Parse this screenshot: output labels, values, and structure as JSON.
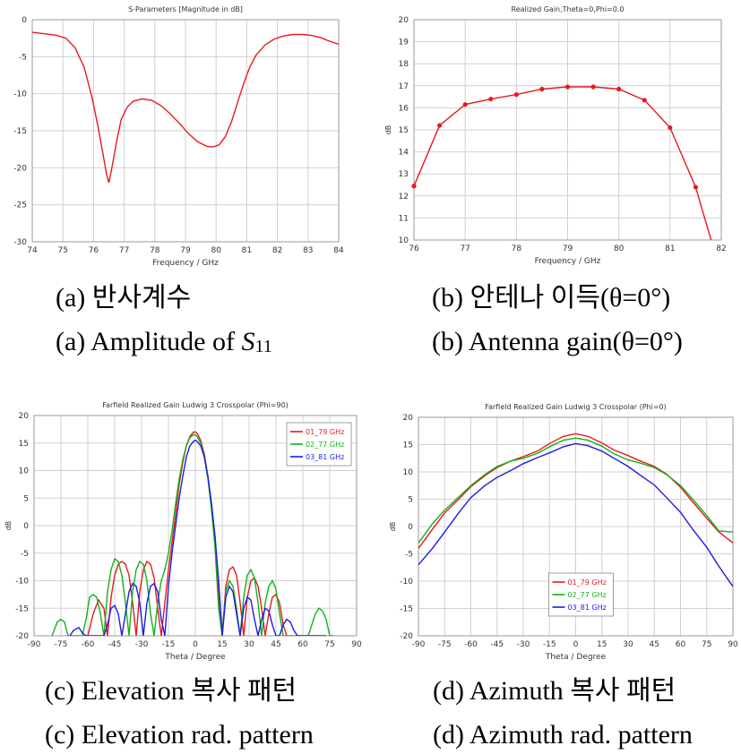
{
  "chart_data": [
    {
      "id": "a",
      "type": "line",
      "title": "S-Parameters [Magnitude in dB]",
      "xlabel": "Frequency / GHz",
      "ylabel": "",
      "xlim": [
        74,
        84
      ],
      "ylim": [
        -30,
        0
      ],
      "xticks": [
        74,
        75,
        76,
        77,
        78,
        79,
        80,
        81,
        82,
        83,
        84
      ],
      "yticks": [
        -30,
        -25,
        -20,
        -15,
        -10,
        -5,
        0
      ],
      "grid": true,
      "markers": false,
      "series": [
        {
          "name": "",
          "color": "#e8191f",
          "x": [
            74.0,
            74.4,
            74.8,
            75.1,
            75.4,
            75.7,
            75.95,
            76.15,
            76.3,
            76.42,
            76.5,
            76.6,
            76.75,
            76.9,
            77.1,
            77.3,
            77.6,
            77.9,
            78.2,
            78.5,
            78.8,
            79.1,
            79.4,
            79.7,
            79.9,
            80.1,
            80.3,
            80.5,
            80.7,
            80.9,
            81.1,
            81.3,
            81.6,
            81.9,
            82.2,
            82.5,
            82.8,
            83.1,
            83.4,
            83.7,
            84.0
          ],
          "y": [
            -1.7,
            -1.9,
            -2.1,
            -2.5,
            -3.8,
            -6.5,
            -10.5,
            -14.5,
            -18.0,
            -20.8,
            -22.0,
            -20.0,
            -16.5,
            -13.5,
            -11.8,
            -11.0,
            -10.7,
            -10.9,
            -11.6,
            -12.7,
            -14.0,
            -15.4,
            -16.5,
            -17.1,
            -17.2,
            -16.9,
            -15.8,
            -13.8,
            -11.2,
            -8.6,
            -6.4,
            -4.8,
            -3.4,
            -2.6,
            -2.2,
            -2.0,
            -2.0,
            -2.1,
            -2.4,
            -2.9,
            -3.3
          ]
        }
      ]
    },
    {
      "id": "b",
      "type": "line",
      "title": "Realized Gain,Theta=0,Phi=0.0",
      "xlabel": "Frequency / GHz",
      "ylabel": "dB",
      "xlim": [
        76,
        82
      ],
      "ylim": [
        10,
        20
      ],
      "xticks": [
        76,
        77,
        78,
        79,
        80,
        81,
        82
      ],
      "yticks": [
        10,
        11,
        12,
        13,
        14,
        15,
        16,
        17,
        18,
        19,
        20
      ],
      "grid": true,
      "markers": true,
      "series": [
        {
          "name": "",
          "color": "#e8191f",
          "x": [
            76.0,
            76.5,
            77.0,
            77.5,
            78.0,
            78.5,
            79.0,
            79.5,
            80.0,
            80.5,
            81.0,
            81.5,
            81.8
          ],
          "y": [
            12.45,
            15.2,
            16.15,
            16.4,
            16.6,
            16.85,
            16.95,
            16.95,
            16.85,
            16.35,
            15.1,
            12.4,
            10.0
          ],
          "marker_flags": [
            1,
            1,
            1,
            1,
            1,
            1,
            1,
            1,
            1,
            1,
            1,
            1,
            0
          ]
        }
      ]
    },
    {
      "id": "c",
      "type": "line",
      "title": "Farfield Realized Gain Ludwig 3 Crosspolar (Phi=90)",
      "xlabel": "Theta / Degree",
      "ylabel": "dB",
      "xlim": [
        -90,
        90
      ],
      "ylim": [
        -20,
        20
      ],
      "xticks": [
        -90,
        -75,
        -60,
        -45,
        -30,
        -15,
        0,
        15,
        30,
        45,
        60,
        75,
        90
      ],
      "yticks": [
        -20,
        -15,
        -10,
        -5,
        0,
        5,
        10,
        15,
        20
      ],
      "grid": true,
      "legend": "top-right",
      "series": [
        {
          "name": "01_79 GHz",
          "color": "#e8191f",
          "x": [
            -60,
            -57,
            -54,
            -51,
            -49,
            -47,
            -45,
            -43,
            -41,
            -39,
            -37,
            -35,
            -33,
            -31,
            -29,
            -27,
            -25,
            -23,
            -21,
            -19,
            -17,
            -15,
            -13,
            -11,
            -9,
            -7,
            -5,
            -3,
            -1,
            0,
            1,
            3,
            5,
            7,
            9,
            11,
            13,
            15,
            17,
            19,
            21,
            23,
            25,
            27,
            29,
            31,
            33,
            35,
            37,
            39,
            41,
            43,
            45,
            47,
            49,
            51
          ],
          "y": [
            -20,
            -16,
            -13.5,
            -15,
            -20,
            -13,
            -9,
            -7,
            -6.5,
            -7,
            -9,
            -14,
            -20,
            -12,
            -8,
            -6.5,
            -7,
            -9.5,
            -15,
            -20,
            -14,
            -8,
            -3,
            2,
            7.5,
            11.5,
            14.5,
            16.2,
            17,
            17,
            16.8,
            15.5,
            13,
            9,
            4,
            -2,
            -12,
            -20,
            -11,
            -8,
            -7.5,
            -9,
            -14,
            -20,
            -13,
            -10,
            -9.5,
            -11,
            -15,
            -20,
            -16,
            -13,
            -12.5,
            -14,
            -18,
            -20
          ]
        },
        {
          "name": "02_77 GHz",
          "color": "#12b217",
          "x": [
            -80,
            -77,
            -75,
            -73,
            -71,
            -69,
            -67,
            -65,
            -63,
            -61,
            -59,
            -57,
            -55,
            -53,
            -51,
            -49,
            -47,
            -45,
            -43,
            -41,
            -39,
            -37,
            -35,
            -33,
            -31,
            -29,
            -27,
            -25,
            -23,
            -21,
            -19,
            -17,
            -15,
            -13,
            -11,
            -9,
            -7,
            -5,
            -3,
            -1,
            0,
            1,
            3,
            5,
            7,
            9,
            11,
            13,
            15,
            17,
            19,
            21,
            23,
            25,
            27,
            29,
            31,
            33,
            35,
            37,
            39,
            41,
            43,
            45,
            47,
            49,
            51,
            53,
            55,
            57,
            59,
            61,
            63,
            65,
            67,
            69,
            71,
            73,
            75,
            77
          ],
          "y": [
            -20,
            -17.5,
            -17,
            -17.5,
            -20,
            -20,
            -20,
            -20,
            -20,
            -17,
            -13,
            -12.5,
            -13,
            -16,
            -20,
            -12,
            -8,
            -6,
            -6.5,
            -9,
            -14,
            -20,
            -12,
            -8,
            -6.5,
            -7,
            -10,
            -16,
            -20,
            -14,
            -10,
            -8,
            -5,
            -1,
            4,
            8.5,
            12,
            14.5,
            16,
            16.5,
            16.5,
            16.2,
            15,
            12.5,
            8.5,
            3,
            -4,
            -15,
            -20,
            -12,
            -10,
            -11,
            -15,
            -20,
            -13,
            -9,
            -8,
            -9.5,
            -14,
            -20,
            -14,
            -11,
            -10,
            -11.5,
            -16,
            -20,
            -20,
            -20,
            -20,
            -20,
            -20,
            -20,
            -20,
            -18,
            -16,
            -15,
            -15.5,
            -17,
            -20,
            -20
          ]
        },
        {
          "name": "03_81 GHz",
          "color": "#1c1ce6",
          "x": [
            -70,
            -68,
            -65,
            -63,
            -61,
            -59,
            -57,
            -55,
            -53,
            -51,
            -49,
            -47,
            -45,
            -43,
            -41,
            -39,
            -37,
            -35,
            -33,
            -31,
            -29,
            -27,
            -25,
            -23,
            -21,
            -19,
            -17,
            -15,
            -13,
            -11,
            -9,
            -7,
            -5,
            -3,
            -1,
            0,
            1,
            3,
            5,
            7,
            9,
            11,
            13,
            15,
            17,
            19,
            21,
            23,
            25,
            27,
            29,
            31,
            33,
            35,
            37,
            39,
            41,
            43,
            45,
            47,
            49,
            51,
            53,
            55,
            57,
            59,
            61,
            63,
            65,
            67,
            69,
            71,
            73
          ],
          "y": [
            -20,
            -19,
            -18.5,
            -19.5,
            -20,
            -20,
            -20,
            -20,
            -20,
            -20,
            -18,
            -15,
            -14.5,
            -16,
            -20,
            -16,
            -12,
            -10.5,
            -11,
            -14,
            -20,
            -14,
            -11,
            -10.5,
            -12,
            -17,
            -20,
            -11,
            -5,
            0,
            5,
            9,
            12.5,
            14.5,
            15.3,
            15.5,
            15.3,
            14.5,
            12.5,
            9,
            4,
            -2,
            -10,
            -20,
            -13,
            -11,
            -12,
            -16,
            -20,
            -15,
            -13,
            -13.5,
            -17,
            -20,
            -17,
            -15,
            -15.5,
            -18,
            -20,
            -20,
            -18,
            -17,
            -17.5,
            -19,
            -20,
            -20,
            -20,
            -20,
            -20,
            -20,
            -20,
            -20,
            -20
          ]
        }
      ]
    },
    {
      "id": "d",
      "type": "line",
      "title": "Farfield Realized Gain Ludwig 3 Crosspolar (Phi=0)",
      "xlabel": "Theta / Degree",
      "ylabel": "dB",
      "xlim": [
        -90,
        90
      ],
      "ylim": [
        -20,
        20
      ],
      "xticks": [
        -90,
        -75,
        -60,
        -45,
        -30,
        -15,
        0,
        15,
        30,
        45,
        60,
        75,
        90
      ],
      "yticks": [
        -20,
        -15,
        -10,
        -5,
        0,
        5,
        10,
        15,
        20
      ],
      "grid": true,
      "legend": "bottom-center",
      "series": [
        {
          "name": "01_79 GHz",
          "color": "#e8191f",
          "x": [
            -90,
            -82,
            -75,
            -67,
            -60,
            -52,
            -45,
            -37,
            -30,
            -22,
            -15,
            -7,
            0,
            7,
            15,
            22,
            30,
            37,
            45,
            52,
            60,
            67,
            75,
            82,
            90
          ],
          "y": [
            -4,
            -0.5,
            2.5,
            5,
            7.3,
            9.3,
            10.8,
            12,
            12.8,
            13.8,
            15.2,
            16.5,
            17,
            16.5,
            15.3,
            14,
            13,
            12,
            11,
            9.6,
            7.2,
            4.5,
            1.5,
            -1,
            -3
          ]
        },
        {
          "name": "02_77 GHz",
          "color": "#12b217",
          "x": [
            -90,
            -82,
            -75,
            -67,
            -60,
            -52,
            -45,
            -37,
            -30,
            -22,
            -15,
            -7,
            0,
            7,
            15,
            22,
            30,
            37,
            45,
            52,
            60,
            67,
            75,
            82,
            90
          ],
          "y": [
            -3,
            0.5,
            3,
            5.4,
            7.5,
            9.5,
            11,
            12,
            12.5,
            13.4,
            14.6,
            15.8,
            16.2,
            15.8,
            14.7,
            13.3,
            12.2,
            11.6,
            10.8,
            9.5,
            7.5,
            5,
            2,
            -0.8,
            -1
          ]
        },
        {
          "name": "03_81 GHz",
          "color": "#1c1ce6",
          "x": [
            -90,
            -82,
            -75,
            -67,
            -60,
            -52,
            -45,
            -37,
            -30,
            -22,
            -15,
            -7,
            0,
            7,
            15,
            22,
            30,
            37,
            45,
            52,
            60,
            67,
            75,
            82,
            90
          ],
          "y": [
            -7,
            -4,
            -1,
            2.5,
            5.3,
            7.5,
            9,
            10.3,
            11.5,
            12.6,
            13.5,
            14.6,
            15.2,
            14.8,
            13.8,
            12.5,
            11,
            9.4,
            7.6,
            5.3,
            2.6,
            -0.5,
            -3.8,
            -7.3,
            -11
          ]
        }
      ]
    }
  ],
  "captions": {
    "a_kr": "(a)  반사계수",
    "a_en_prefix": "(a)  Amplitude of ",
    "a_en_var": "S",
    "a_en_sub": "11",
    "b_kr": "(b)  안테나 이득(θ=0°)",
    "b_en": "(b)  Antenna gain(θ=0°)",
    "c_kr": "(c)  Elevation 복사 패턴",
    "c_en": "(c)  Elevation rad. pattern",
    "d_kr": "(d)  Azimuth 복사 패턴",
    "d_en": "(d)  Azimuth rad. pattern"
  }
}
